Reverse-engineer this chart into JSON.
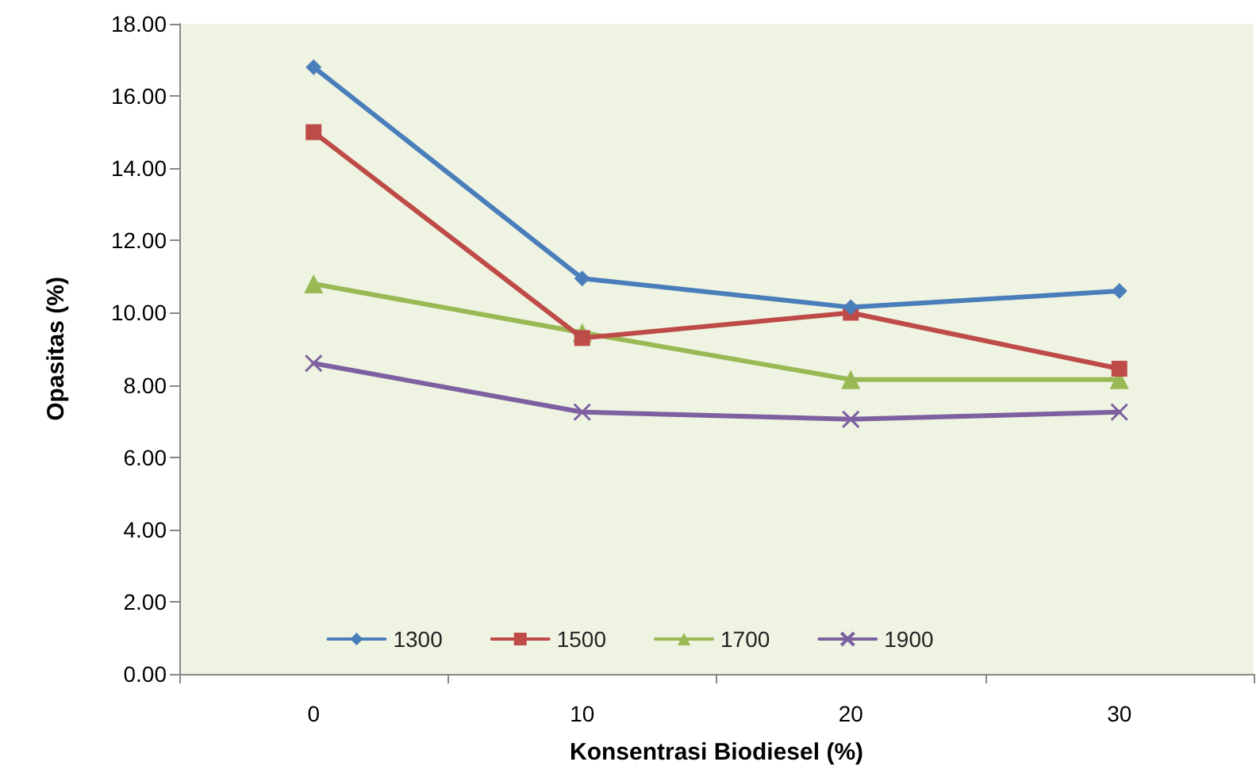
{
  "chart_data": {
    "type": "line",
    "xlabel": "Konsentrasi Biodiesel (%)",
    "ylabel": "Opasitas (%)",
    "categories": [
      "0",
      "10",
      "20",
      "30"
    ],
    "series": [
      {
        "name": "1300",
        "color": "#4a7ebb",
        "marker": "diamond",
        "values": [
          16.8,
          10.95,
          10.15,
          10.6
        ]
      },
      {
        "name": "1500",
        "color": "#be4b48",
        "marker": "square",
        "values": [
          15.0,
          9.3,
          10.0,
          8.45
        ]
      },
      {
        "name": "1700",
        "color": "#98b954",
        "marker": "triangle",
        "values": [
          10.8,
          9.45,
          8.15,
          8.15
        ]
      },
      {
        "name": "1900",
        "color": "#7d60a0",
        "marker": "cross",
        "values": [
          8.6,
          7.25,
          7.05,
          7.25
        ]
      }
    ],
    "ylim": [
      0,
      18
    ],
    "yticks": [
      {
        "value": 0,
        "label": "0.00"
      },
      {
        "value": 2,
        "label": "2.00"
      },
      {
        "value": 4,
        "label": "4.00"
      },
      {
        "value": 6,
        "label": "6.00"
      },
      {
        "value": 8,
        "label": "8.00"
      },
      {
        "value": 10,
        "label": "10.00"
      },
      {
        "value": 12,
        "label": "12.00"
      },
      {
        "value": 14,
        "label": "14.00"
      },
      {
        "value": 16,
        "label": "16.00"
      },
      {
        "value": 18,
        "label": "18.00"
      }
    ],
    "legend": "bottom",
    "grid": false,
    "line_style": "solid"
  }
}
